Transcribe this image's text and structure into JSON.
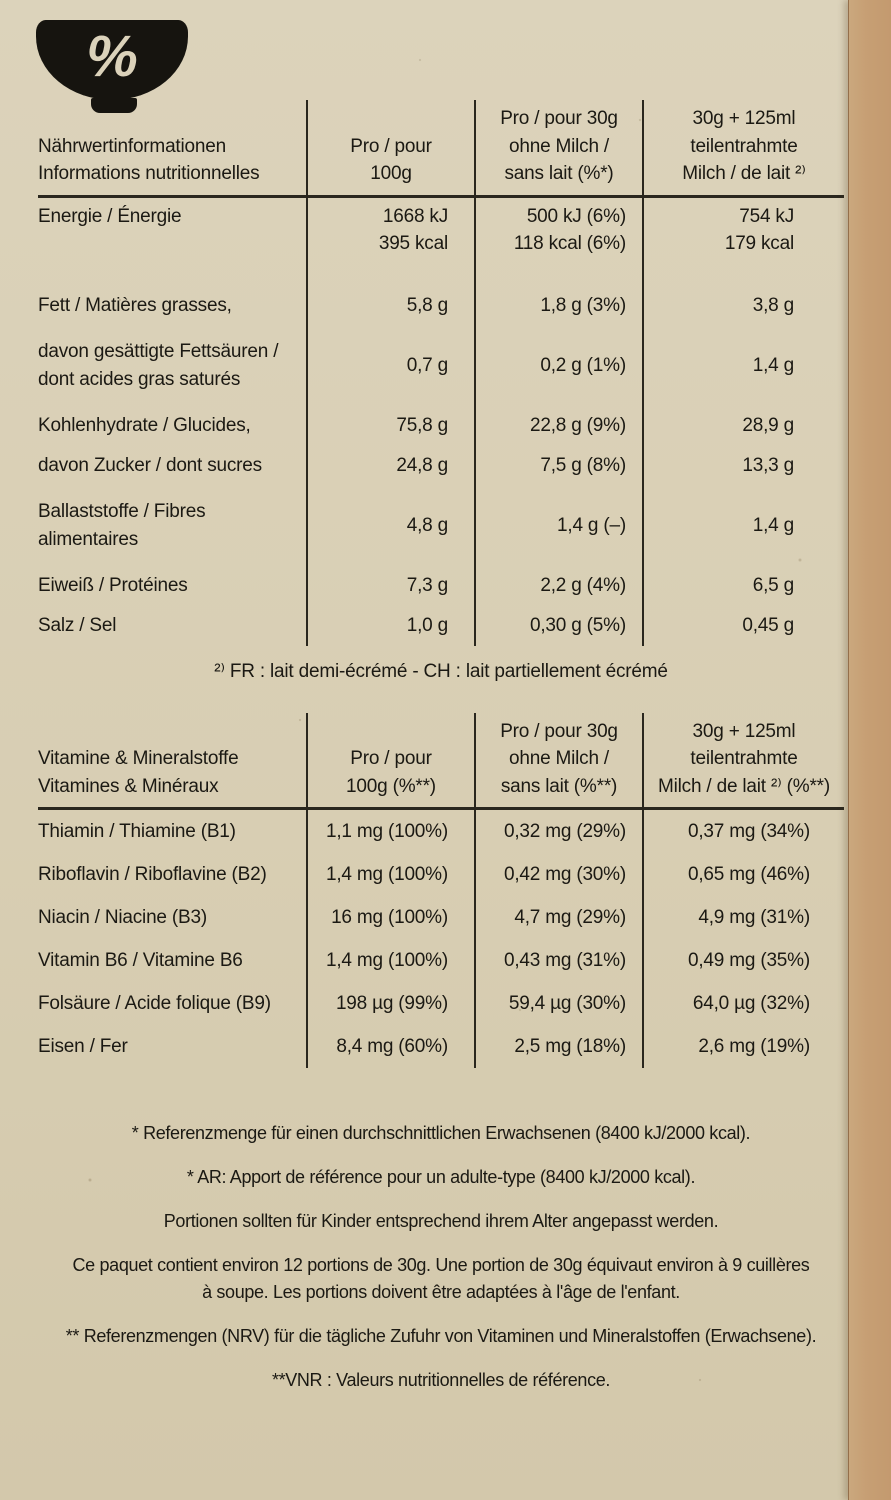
{
  "meta": {
    "paper_color": "#d8ceb3",
    "edge_color": "#c79f74",
    "ink_color": "#1b1913"
  },
  "logo": {
    "percent": "%"
  },
  "table1": {
    "header": {
      "label": "Nährwertinformationen\nInformations nutritionnelles",
      "col1": "Pro / pour\n100g",
      "col2": "Pro / pour 30g\nohne Milch /\nsans lait (%*)",
      "col3": "30g + 125ml\nteilentrahmte\nMilch / de lait ²⁾"
    },
    "rows": [
      {
        "label": "Energie / Énergie",
        "c1": "1668 kJ\n395 kcal",
        "c2": "500 kJ (6%)\n118 kcal (6%)",
        "c3": "754 kJ\n179 kcal"
      },
      {
        "label": "Fett / Matières grasses,",
        "c1": "5,8 g",
        "c2": "1,8 g (3%)",
        "c3": "3,8 g"
      },
      {
        "label": "davon gesättigte Fettsäuren /\ndont acides gras saturés",
        "c1": "0,7 g",
        "c2": "0,2 g (1%)",
        "c3": "1,4 g"
      },
      {
        "label": "Kohlenhydrate / Glucides,",
        "c1": "75,8 g",
        "c2": "22,8 g (9%)",
        "c3": "28,9 g"
      },
      {
        "label": "davon Zucker / dont sucres",
        "c1": "24,8 g",
        "c2": "7,5 g (8%)",
        "c3": "13,3 g"
      },
      {
        "label": "Ballaststoffe / Fibres\nalimentaires",
        "c1": "4,8 g",
        "c2": "1,4 g (–)",
        "c3": "1,4 g"
      },
      {
        "label": "Eiweiß / Protéines",
        "c1": "7,3 g",
        "c2": "2,2 g (4%)",
        "c3": "6,5 g"
      },
      {
        "label": "Salz / Sel",
        "c1": "1,0 g",
        "c2": "0,30 g (5%)",
        "c3": "0,45 g"
      }
    ],
    "footnote": "²⁾ FR : lait demi-écrémé - CH : lait partiellement écrémé"
  },
  "table2": {
    "header": {
      "label": "Vitamine & Mineralstoffe\nVitamines & Minéraux",
      "col1": "Pro / pour\n100g (%**)",
      "col2": "Pro / pour 30g\nohne Milch /\nsans lait (%**)",
      "col3": "30g + 125ml\nteilentrahmte\nMilch / de lait ²⁾ (%**)"
    },
    "rows": [
      {
        "label": "Thiamin / Thiamine (B1)",
        "c1": "1,1 mg (100%)",
        "c2": "0,32 mg (29%)",
        "c3": "0,37 mg (34%)"
      },
      {
        "label": "Riboflavin / Riboflavine (B2)",
        "c1": "1,4 mg (100%)",
        "c2": "0,42 mg (30%)",
        "c3": "0,65 mg (46%)"
      },
      {
        "label": "Niacin / Niacine (B3)",
        "c1": "16 mg (100%)",
        "c2": "4,7 mg (29%)",
        "c3": "4,9 mg (31%)"
      },
      {
        "label": "Vitamin B6 / Vitamine B6",
        "c1": "1,4 mg (100%)",
        "c2": "0,43 mg (31%)",
        "c3": "0,49 mg (35%)"
      },
      {
        "label": "Folsäure / Acide folique (B9)",
        "c1": "198 µg (99%)",
        "c2": "59,4 µg (30%)",
        "c3": "64,0 µg (32%)"
      },
      {
        "label": "Eisen / Fer",
        "c1": "8,4 mg (60%)",
        "c2": "2,5 mg (18%)",
        "c3": "2,6 mg (19%)"
      }
    ]
  },
  "footnotes": [
    "* Referenzmenge für einen durchschnittlichen Erwachsenen (8400 kJ/2000 kcal).",
    "* AR: Apport de référence pour un adulte-type (8400 kJ/2000 kcal).",
    "Portionen sollten für Kinder entsprechend ihrem Alter angepasst werden.",
    "Ce paquet contient environ 12 portions de 30g. Une portion de 30g équivaut environ à 9 cuillères\nà soupe. Les portions doivent être adaptées à l'âge de l'enfant.",
    "** Referenzmengen (NRV) für die tägliche Zufuhr von Vitaminen und Mineralstoffen (Erwachsene).",
    "**VNR : Valeurs nutritionnelles de référence."
  ]
}
